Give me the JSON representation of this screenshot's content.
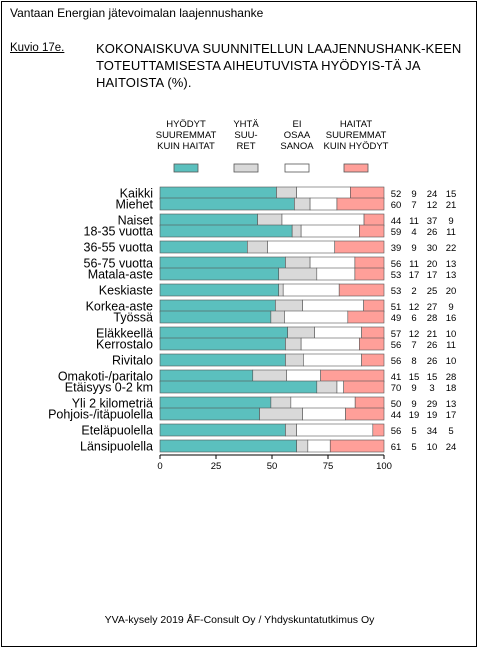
{
  "header": {
    "title": "Vantaan Energian jätevoimalan laajennushanke"
  },
  "figure": {
    "label": "Kuvio 17e.",
    "title": "KOKONAISKUVA SUUNNITELLUN LAAJENNUSHANK-KEEN TOTEUTTAMISESTA AIHEUTUVISTA HYÖDYIS-TÄ JA HAITOISTA (%)."
  },
  "footer": {
    "source": "YVA-kysely 2019 ÅF-Consult Oy / Yhdyskuntatutkimus Oy"
  },
  "colors": {
    "benefit": "#5bc0be",
    "equal": "#d9d9d9",
    "dontknow": "#ffffff",
    "harm": "#ff9f99",
    "border": "#555555"
  },
  "chart_data": {
    "type": "bar",
    "stacked": true,
    "orientation": "horizontal",
    "xlim": [
      0,
      100
    ],
    "xticks": [
      "0",
      "25",
      "50",
      "75",
      "100"
    ],
    "legend_position": "top",
    "series": [
      {
        "name": "HYÖDYT SUUREMMAT KUIN HAITAT",
        "legend_lines": [
          "HYÖDYT",
          "SUUREMMAT",
          "KUIN HAITAT"
        ]
      },
      {
        "name": "YHTÄ SUURET",
        "legend_lines": [
          "YHTÄ",
          "SUU-",
          "RET"
        ]
      },
      {
        "name": "EI OSAA SANOA",
        "legend_lines": [
          "EI",
          "OSAA",
          "SANOA"
        ]
      },
      {
        "name": "HAITAT SUUREMMAT KUIN HYÖDYT",
        "legend_lines": [
          "HAITAT",
          "SUUREMMAT",
          "KUIN HYÖDYT"
        ]
      }
    ],
    "groups": [
      {
        "rows": [
          {
            "label": "Kaikki",
            "values": [
              52,
              9,
              24,
              15
            ]
          }
        ]
      },
      {
        "rows": [
          {
            "label": "Miehet",
            "values": [
              60,
              7,
              12,
              21
            ]
          },
          {
            "label": "Naiset",
            "values": [
              44,
              11,
              37,
              9
            ]
          }
        ]
      },
      {
        "rows": [
          {
            "label": "18-35 vuotta",
            "values": [
              59,
              4,
              26,
              11
            ]
          },
          {
            "label": "36-55 vuotta",
            "values": [
              39,
              9,
              30,
              22
            ]
          },
          {
            "label": "56-75 vuotta",
            "values": [
              56,
              11,
              20,
              13
            ]
          }
        ]
      },
      {
        "rows": [
          {
            "label": "Matala-aste",
            "values": [
              53,
              17,
              17,
              13
            ]
          },
          {
            "label": "Keskiaste",
            "values": [
              53,
              2,
              25,
              20
            ]
          },
          {
            "label": "Korkea-aste",
            "values": [
              51,
              12,
              27,
              9
            ]
          }
        ]
      },
      {
        "rows": [
          {
            "label": "Työssä",
            "values": [
              49,
              6,
              28,
              16
            ]
          },
          {
            "label": "Eläkkeellä",
            "values": [
              57,
              12,
              21,
              10
            ]
          }
        ]
      },
      {
        "rows": [
          {
            "label": "Kerrostalo",
            "values": [
              56,
              7,
              26,
              11
            ]
          },
          {
            "label": "Rivitalo",
            "values": [
              56,
              8,
              26,
              10
            ]
          },
          {
            "label": "Omakoti-/paritalo",
            "values": [
              41,
              15,
              15,
              28
            ]
          }
        ]
      },
      {
        "rows": [
          {
            "label": "Etäisyys 0-2 km",
            "values": [
              70,
              9,
              3,
              18
            ]
          },
          {
            "label": "Yli 2 kilometriä",
            "values": [
              50,
              9,
              29,
              13
            ]
          }
        ]
      },
      {
        "rows": [
          {
            "label": "Pohjois-/itäpuolella",
            "values": [
              44,
              19,
              19,
              17
            ]
          },
          {
            "label": "Eteläpuolella",
            "values": [
              56,
              5,
              34,
              5
            ]
          },
          {
            "label": "Länsipuolella",
            "values": [
              61,
              5,
              10,
              24
            ]
          }
        ]
      }
    ]
  }
}
